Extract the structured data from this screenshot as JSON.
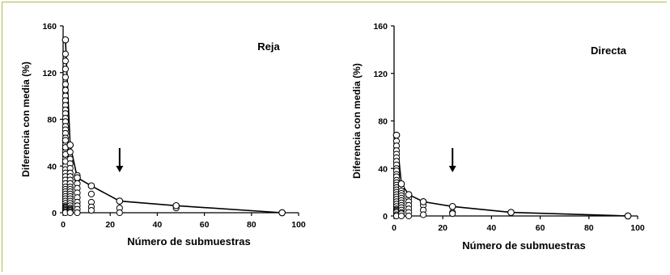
{
  "chart_data": [
    {
      "type": "scatter",
      "title": "Reja",
      "xlabel": "Número de submuestras",
      "ylabel": "Diferencia con media (%)",
      "xlim": [
        0,
        100
      ],
      "ylim": [
        0,
        160
      ],
      "x_ticks": [
        "0",
        "20",
        "40",
        "60",
        "80",
        "100"
      ],
      "y_ticks": [
        "0",
        "40",
        "80",
        "120",
        "160"
      ],
      "annotation": "arrow pointing down at x≈24",
      "arrow_x": 24,
      "line": {
        "x": [
          1,
          3,
          6,
          12,
          24,
          48,
          93
        ],
        "y": [
          148,
          58,
          30,
          23,
          10,
          6,
          0
        ]
      },
      "scatter": {
        "x": [
          1,
          1,
          1,
          1,
          1,
          1,
          1,
          1,
          1,
          1,
          1,
          1,
          1,
          1,
          1,
          1,
          1,
          1,
          1,
          1,
          1,
          1,
          1,
          1,
          1,
          1,
          1,
          1,
          1,
          1,
          1,
          1,
          1,
          1,
          1,
          1,
          1,
          1,
          1,
          1,
          1,
          1,
          1,
          1,
          1,
          1,
          1,
          1,
          1,
          1,
          3,
          3,
          3,
          3,
          3,
          3,
          3,
          3,
          3,
          3,
          3,
          3,
          3,
          3,
          3,
          3,
          3,
          3,
          3,
          3,
          3,
          3,
          3,
          6,
          6,
          6,
          6,
          6,
          6,
          6,
          6,
          6,
          6,
          12,
          12,
          12,
          12,
          12,
          24,
          24,
          24,
          48,
          48,
          93
        ],
        "y": [
          148,
          136,
          116,
          110,
          105,
          100,
          96,
          92,
          88,
          85,
          81,
          78,
          74,
          71,
          68,
          64,
          61,
          58,
          55,
          52,
          49,
          46,
          43,
          40,
          37,
          34,
          31,
          28,
          25,
          22,
          20,
          18,
          16,
          14,
          12,
          10,
          8,
          6,
          5,
          4,
          3,
          2,
          1,
          0,
          130,
          123,
          62,
          56,
          50,
          44,
          58,
          52,
          46,
          42,
          38,
          34,
          31,
          28,
          25,
          22,
          20,
          18,
          16,
          14,
          12,
          10,
          8,
          6,
          4,
          3,
          2,
          1,
          0,
          32,
          29,
          25,
          21,
          17,
          13,
          9,
          6,
          3,
          0,
          23,
          16,
          9,
          5,
          2,
          10,
          4,
          0,
          6,
          4,
          0
        ]
      }
    },
    {
      "type": "scatter",
      "title": "Directa",
      "xlabel": "Número de submuestras",
      "ylabel": "Diferencia con media (%)",
      "xlim": [
        0,
        100
      ],
      "ylim": [
        0,
        160
      ],
      "x_ticks": [
        "0",
        "20",
        "40",
        "60",
        "80",
        "100"
      ],
      "y_ticks": [
        "0",
        "40",
        "80",
        "120",
        "160"
      ],
      "annotation": "arrow pointing down at x≈24",
      "arrow_x": 24,
      "line": {
        "x": [
          1,
          3,
          6,
          12,
          24,
          48,
          96
        ],
        "y": [
          68,
          27,
          18,
          12,
          8,
          3,
          0
        ]
      },
      "scatter": {
        "x": [
          1,
          1,
          1,
          1,
          1,
          1,
          1,
          1,
          1,
          1,
          1,
          1,
          1,
          1,
          1,
          1,
          1,
          1,
          1,
          1,
          1,
          1,
          1,
          1,
          1,
          1,
          1,
          1,
          1,
          1,
          3,
          3,
          3,
          3,
          3,
          3,
          3,
          3,
          3,
          3,
          3,
          3,
          3,
          3,
          6,
          6,
          6,
          6,
          6,
          6,
          6,
          12,
          12,
          12,
          12,
          24,
          24,
          24,
          48,
          96
        ],
        "y": [
          68,
          63,
          59,
          55,
          52,
          49,
          46,
          43,
          40,
          38,
          35,
          33,
          30,
          28,
          26,
          24,
          22,
          20,
          18,
          16,
          14,
          12,
          10,
          8,
          6,
          5,
          4,
          3,
          1,
          0,
          27,
          24,
          21,
          19,
          17,
          15,
          13,
          11,
          9,
          7,
          5,
          3,
          2,
          0,
          18,
          15,
          12,
          9,
          6,
          3,
          0,
          12,
          9,
          5,
          1,
          8,
          3,
          2,
          3,
          0
        ]
      }
    }
  ]
}
